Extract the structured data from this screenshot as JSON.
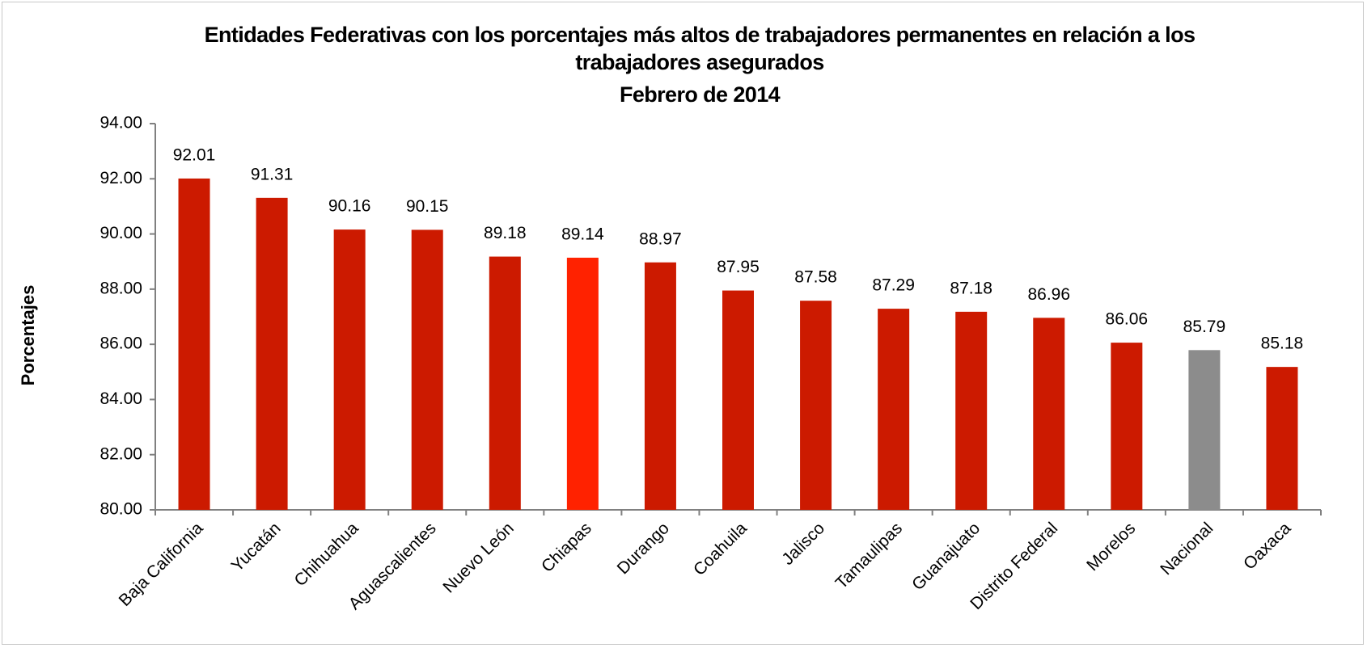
{
  "chart_data": {
    "type": "bar",
    "title": "Entidades Federativas con los porcentajes más altos de trabajadores permanentes  en relación a los trabajadores asegurados",
    "subtitle": "Febrero de 2014",
    "y_label": "Porcentajes",
    "categories": [
      "Baja California",
      "Yucatán",
      "Chihuahua",
      "Aguascalientes",
      "Nuevo León",
      "Chiapas",
      "Durango",
      "Coahuila",
      "Jalisco",
      "Tamaulipas",
      "Guanajuato",
      "Distrito Federal",
      "Morelos",
      "Nacional",
      "Oaxaca"
    ],
    "values": [
      92.01,
      91.31,
      90.16,
      90.15,
      89.18,
      89.14,
      88.97,
      87.95,
      87.58,
      87.29,
      87.18,
      86.96,
      86.06,
      85.79,
      85.18
    ],
    "colors": [
      "#cc1a00",
      "#cc1a00",
      "#cc1a00",
      "#cc1a00",
      "#cc1a00",
      "#ff2200",
      "#cc1a00",
      "#cc1a00",
      "#cc1a00",
      "#cc1a00",
      "#cc1a00",
      "#cc1a00",
      "#cc1a00",
      "#8c8c8c",
      "#cc1a00"
    ],
    "ylim": [
      80,
      94
    ],
    "yticks": [
      {
        "value": 80,
        "label": "80.00"
      },
      {
        "value": 82,
        "label": "82.00"
      },
      {
        "value": 84,
        "label": "84.00"
      },
      {
        "value": 86,
        "label": "86.00"
      },
      {
        "value": 88,
        "label": "88.00"
      },
      {
        "value": 90,
        "label": "90.00"
      },
      {
        "value": 92,
        "label": "92.00"
      },
      {
        "value": 94,
        "label": "94.00"
      }
    ],
    "grid": false
  }
}
